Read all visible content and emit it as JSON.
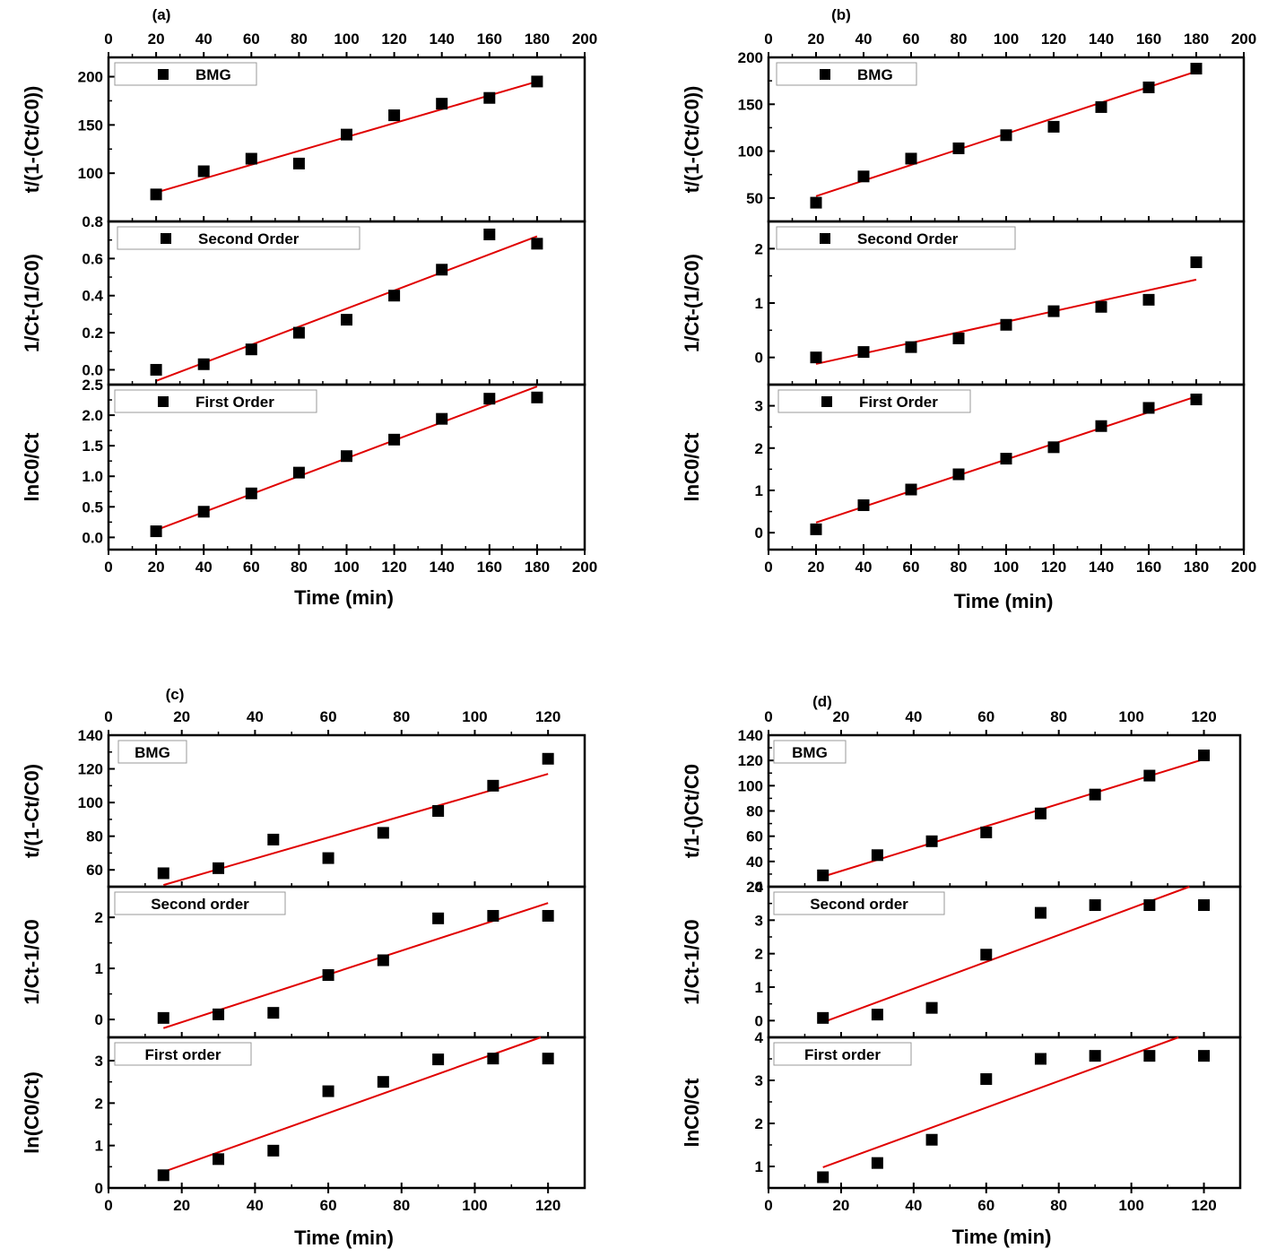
{
  "chart_data": [
    {
      "type": "scatter",
      "panel_label": "(a)",
      "xlabel": "Time (min)",
      "xlim": [
        0,
        200
      ],
      "xticks": [
        0,
        20,
        40,
        60,
        80,
        100,
        120,
        140,
        160,
        180,
        200
      ],
      "subplots": [
        {
          "legend": "BMG",
          "ylabel": "t/(1-(Ct/C0))",
          "ylim": [
            50,
            220
          ],
          "yticks": [
            100,
            150,
            200
          ],
          "x": [
            20,
            40,
            60,
            80,
            100,
            120,
            140,
            160,
            180
          ],
          "y": [
            78,
            102,
            115,
            110,
            140,
            160,
            172,
            178,
            195
          ],
          "fit_x": [
            20,
            180
          ],
          "fit_y": [
            80,
            195
          ]
        },
        {
          "legend": "Second Order",
          "ylabel": "1/Ct-(1/C0)",
          "ylim": [
            -0.08,
            0.8
          ],
          "yticks": [
            0.0,
            0.2,
            0.4,
            0.6,
            0.8
          ],
          "ytick_format": 1,
          "x": [
            20,
            40,
            60,
            80,
            100,
            120,
            140,
            160,
            180
          ],
          "y": [
            0.0,
            0.03,
            0.11,
            0.2,
            0.27,
            0.4,
            0.54,
            0.73,
            0.68
          ],
          "fit_x": [
            20,
            180
          ],
          "fit_y": [
            -0.06,
            0.72
          ]
        },
        {
          "legend": "First Order",
          "ylabel": "lnC0/Ct",
          "ylim": [
            -0.2,
            2.5
          ],
          "yticks": [
            0.0,
            0.5,
            1.0,
            1.5,
            2.0,
            2.5
          ],
          "ytick_format": 1,
          "x": [
            20,
            40,
            60,
            80,
            100,
            120,
            140,
            160,
            180
          ],
          "y": [
            0.1,
            0.42,
            0.72,
            1.06,
            1.33,
            1.6,
            1.94,
            2.27,
            2.29
          ],
          "fit_x": [
            20,
            180
          ],
          "fit_y": [
            0.12,
            2.47
          ]
        }
      ]
    },
    {
      "type": "scatter",
      "panel_label": "(b)",
      "xlabel": "Time (min)",
      "xlim": [
        0,
        200
      ],
      "xticks": [
        0,
        20,
        40,
        60,
        80,
        100,
        120,
        140,
        160,
        180,
        200
      ],
      "subplots": [
        {
          "legend": "BMG",
          "ylabel": "t/(1-(Ct/C0))",
          "ylim": [
            25,
            200
          ],
          "yticks": [
            50,
            100,
            150,
            200
          ],
          "x": [
            20,
            40,
            60,
            80,
            100,
            120,
            140,
            160,
            180
          ],
          "y": [
            45,
            73,
            92,
            103,
            117,
            126,
            147,
            168,
            188
          ],
          "fit_x": [
            20,
            180
          ],
          "fit_y": [
            52,
            185
          ]
        },
        {
          "legend": "Second Order",
          "ylabel": "1/Ct-(1/C0)",
          "ylim": [
            -0.5,
            2.5
          ],
          "yticks": [
            0,
            1,
            2
          ],
          "x": [
            20,
            40,
            60,
            80,
            100,
            120,
            140,
            160,
            180
          ],
          "y": [
            0.0,
            0.1,
            0.19,
            0.35,
            0.6,
            0.85,
            0.93,
            1.06,
            1.75
          ],
          "fit_x": [
            20,
            180
          ],
          "fit_y": [
            -0.12,
            1.43
          ]
        },
        {
          "legend": "First Order",
          "ylabel": "lnC0/Ct",
          "ylim": [
            -0.4,
            3.5
          ],
          "yticks": [
            0,
            1,
            2,
            3
          ],
          "x": [
            20,
            40,
            60,
            80,
            100,
            120,
            140,
            160,
            180
          ],
          "y": [
            0.08,
            0.65,
            1.02,
            1.38,
            1.75,
            2.02,
            2.52,
            2.95,
            3.15
          ],
          "fit_x": [
            20,
            180
          ],
          "fit_y": [
            0.24,
            3.22
          ]
        }
      ]
    },
    {
      "type": "scatter",
      "panel_label": "(c)",
      "xlabel": "Time (min)",
      "xlim": [
        0,
        130
      ],
      "xticks": [
        0,
        20,
        40,
        60,
        80,
        100,
        120
      ],
      "subplots": [
        {
          "legend": "BMG",
          "ylabel": "t/(1-Ct/C0)",
          "ylim": [
            50,
            140
          ],
          "yticks": [
            60,
            80,
            100,
            120,
            140
          ],
          "x": [
            15,
            30,
            45,
            60,
            75,
            90,
            105,
            120
          ],
          "y": [
            58,
            61,
            78,
            67,
            82,
            95,
            110,
            126
          ],
          "fit_x": [
            15,
            120
          ],
          "fit_y": [
            51,
            117
          ]
        },
        {
          "legend": "Second order",
          "ylabel": "1/Ct-1/C0",
          "ylim": [
            -0.35,
            2.6
          ],
          "yticks": [
            0,
            1,
            2
          ],
          "x": [
            15,
            30,
            45,
            60,
            75,
            90,
            105,
            120
          ],
          "y": [
            0.03,
            0.1,
            0.13,
            0.87,
            1.16,
            1.98,
            2.03,
            2.03
          ],
          "fit_x": [
            15,
            120
          ],
          "fit_y": [
            -0.17,
            2.28
          ]
        },
        {
          "legend": "First order",
          "ylabel": "ln(C0/Ct)",
          "ylim": [
            0,
            3.55
          ],
          "yticks": [
            0,
            1,
            2,
            3
          ],
          "x": [
            15,
            30,
            45,
            60,
            75,
            90,
            105,
            120
          ],
          "y": [
            0.3,
            0.68,
            0.88,
            2.28,
            2.5,
            3.03,
            3.05,
            3.05
          ],
          "fit_x": [
            15,
            118
          ],
          "fit_y": [
            0.38,
            3.55
          ]
        }
      ]
    },
    {
      "type": "scatter",
      "panel_label": "(d)",
      "xlabel": "Time (min)",
      "xlim": [
        0,
        130
      ],
      "xticks": [
        0,
        20,
        40,
        60,
        80,
        100,
        120
      ],
      "subplots": [
        {
          "legend": "BMG",
          "ylabel": "t/1-()Ct/C0",
          "ylim": [
            20,
            140
          ],
          "yticks": [
            20,
            40,
            60,
            80,
            100,
            120,
            140
          ],
          "x": [
            15,
            30,
            45,
            60,
            75,
            90,
            105,
            120
          ],
          "y": [
            29,
            45,
            56,
            63,
            78,
            93,
            108,
            124
          ],
          "fit_x": [
            15,
            120
          ],
          "fit_y": [
            28,
            121
          ]
        },
        {
          "legend": "Second order",
          "ylabel": "1/Ct-1/C0",
          "ylim": [
            -0.5,
            4
          ],
          "yticks": [
            0,
            1,
            2,
            3,
            4
          ],
          "x": [
            15,
            30,
            45,
            60,
            75,
            90,
            105,
            120
          ],
          "y": [
            0.08,
            0.18,
            0.38,
            1.97,
            3.22,
            3.45,
            3.45,
            3.45
          ],
          "fit_x": [
            15,
            116
          ],
          "fit_y": [
            -0.05,
            4.0
          ]
        },
        {
          "legend": "First order",
          "ylabel": "lnC0/Ct",
          "ylim": [
            0.5,
            4
          ],
          "yticks": [
            1,
            2,
            3,
            4
          ],
          "x": [
            15,
            30,
            45,
            60,
            75,
            90,
            105,
            120
          ],
          "y": [
            0.75,
            1.08,
            1.62,
            3.03,
            3.5,
            3.57,
            3.57,
            3.57
          ],
          "fit_x": [
            15,
            113
          ],
          "fit_y": [
            0.98,
            4.0
          ]
        }
      ]
    }
  ]
}
